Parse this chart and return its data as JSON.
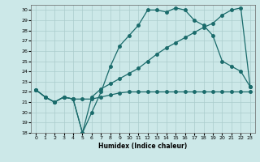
{
  "xlabel": "Humidex (Indice chaleur)",
  "bg_color": "#cce8e8",
  "grid_color": "#aacccc",
  "line_color": "#1a6b6b",
  "xlim": [
    -0.5,
    23.5
  ],
  "ylim": [
    18,
    30.5
  ],
  "xticks": [
    0,
    1,
    2,
    3,
    4,
    5,
    6,
    7,
    8,
    9,
    10,
    11,
    12,
    13,
    14,
    15,
    16,
    17,
    18,
    19,
    20,
    21,
    22,
    23
  ],
  "yticks": [
    18,
    19,
    20,
    21,
    22,
    23,
    24,
    25,
    26,
    27,
    28,
    29,
    30
  ],
  "line1_x": [
    0,
    1,
    2,
    3,
    4,
    5,
    6,
    7,
    8,
    9,
    10,
    11,
    12,
    13,
    14,
    15,
    16,
    17,
    18,
    19,
    20,
    21,
    22,
    23
  ],
  "line1_y": [
    22.2,
    21.5,
    21.0,
    21.5,
    21.3,
    21.3,
    21.3,
    21.5,
    21.7,
    21.9,
    22.0,
    22.0,
    22.0,
    22.0,
    22.0,
    22.0,
    22.0,
    22.0,
    22.0,
    22.0,
    22.0,
    22.0,
    22.0,
    22.0
  ],
  "line2_x": [
    0,
    1,
    2,
    3,
    4,
    5,
    6,
    7,
    8,
    9,
    10,
    11,
    12,
    13,
    14,
    15,
    16,
    17,
    18,
    19,
    20,
    21,
    22,
    23
  ],
  "line2_y": [
    22.2,
    21.5,
    21.0,
    21.5,
    21.3,
    18.0,
    20.0,
    22.0,
    24.5,
    26.5,
    27.5,
    28.5,
    30.0,
    30.0,
    29.8,
    30.2,
    30.0,
    29.0,
    28.5,
    27.5,
    25.0,
    24.5,
    24.0,
    22.5
  ],
  "line3_x": [
    0,
    1,
    2,
    3,
    4,
    5,
    6,
    7,
    8,
    9,
    10,
    11,
    12,
    13,
    14,
    15,
    16,
    17,
    18,
    19,
    20,
    21,
    22,
    23
  ],
  "line3_y": [
    22.2,
    21.5,
    21.0,
    21.5,
    21.3,
    18.0,
    21.5,
    22.3,
    22.8,
    23.3,
    23.8,
    24.3,
    25.0,
    25.7,
    26.3,
    26.8,
    27.3,
    27.8,
    28.3,
    28.7,
    29.5,
    30.0,
    30.2,
    22.5
  ],
  "marker": "o",
  "markersize": 2.5,
  "linewidth": 0.9
}
